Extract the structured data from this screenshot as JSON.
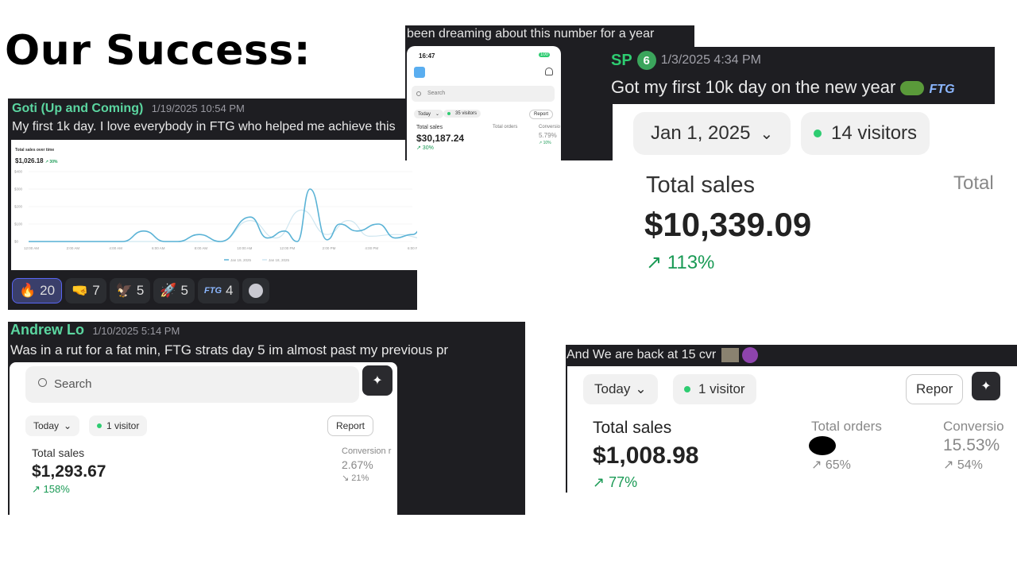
{
  "heading": "Our Success:",
  "post_goti": {
    "author": "Goti (Up and Coming)",
    "timestamp": "1/19/2025 10:54 PM",
    "message": "My first 1k day. I love everybody in FTG who helped me achieve this",
    "chart": {
      "title": "Total sales over time",
      "total": "$1,026.18",
      "change": "↗ 30%"
    },
    "reactions": [
      {
        "icon": "fire-emoji",
        "glyph": "🔥",
        "count": "20"
      },
      {
        "icon": "fist-emoji",
        "glyph": "🤜",
        "count": "7"
      },
      {
        "icon": "eagle-emoji",
        "glyph": "🦅",
        "count": "5"
      },
      {
        "icon": "rocket-emoji",
        "glyph": "🚀",
        "count": "5"
      },
      {
        "icon": "ftg-emoji",
        "glyph": "FTG",
        "count": "4"
      }
    ]
  },
  "chart_data": {
    "type": "line",
    "title": "Total sales over time",
    "x": [
      "12:00 AM",
      "2:00 AM",
      "4:00 AM",
      "6:00 AM",
      "8:00 AM",
      "10:00 AM",
      "12:00 PM",
      "2:00 PM",
      "4:00 PM",
      "6:00 PM"
    ],
    "y_ticks": [
      "$400",
      "$300",
      "$200",
      "$100",
      "$0"
    ],
    "ylim": [
      0,
      400
    ],
    "series": [
      {
        "name": "Jan 19, 2025",
        "color": "#5bb3d6",
        "points": [
          [
            0,
            0
          ],
          [
            1.4,
            0
          ],
          [
            2.2,
            0
          ],
          [
            2.7,
            60
          ],
          [
            3.2,
            0
          ],
          [
            3.5,
            0
          ],
          [
            4,
            40
          ],
          [
            4.5,
            0
          ],
          [
            5.2,
            140
          ],
          [
            5.6,
            20
          ],
          [
            6,
            60
          ],
          [
            6.3,
            0
          ],
          [
            6.6,
            300
          ],
          [
            7,
            10
          ],
          [
            7.3,
            100
          ],
          [
            7.7,
            60
          ],
          [
            8.2,
            100
          ],
          [
            8.6,
            20
          ],
          [
            9,
            40
          ],
          [
            9.3,
            100
          ],
          [
            9.5,
            80
          ]
        ]
      },
      {
        "name": "Jan 18, 2025",
        "color": "#cfe6f0",
        "points": [
          [
            0,
            0
          ],
          [
            4.5,
            0
          ],
          [
            5.2,
            120
          ],
          [
            5.8,
            20
          ],
          [
            6.4,
            180
          ],
          [
            7,
            40
          ],
          [
            7.5,
            120
          ],
          [
            8,
            30
          ],
          [
            8.6,
            40
          ],
          [
            9.5,
            10
          ]
        ]
      }
    ]
  },
  "screenshot_phone": {
    "caption": "been dreaming about this number for a year",
    "time": "16:47",
    "battery": "100",
    "search_placeholder": "Search",
    "today": "Today",
    "visitors": "35 visitors",
    "report": "Report",
    "total_sales_label": "Total sales",
    "total_sales": "$30,187.24",
    "change": "↗ 30%",
    "orders_label": "Total orders",
    "conversion_label": "Conversio",
    "conversion": "5.79%",
    "conversion_change": "↗ 10%"
  },
  "post_sp": {
    "author": "SP",
    "level": "6",
    "timestamp": "1/3/2025 4:34 PM",
    "message": "Got my first 10k day on the new year",
    "ftg": "FTG",
    "date_pill": "Jan 1, 2025",
    "visitors": "14 visitors",
    "total_sales_label": "Total sales",
    "total_label": "Total",
    "total_sales": "$10,339.09",
    "change": "↗ 113%"
  },
  "post_andrew": {
    "author": "Andrew Lo",
    "timestamp": "1/10/2025 5:14 PM",
    "message": "Was in a rut for a fat min, FTG strats day 5 im almost past my previous pr",
    "search_placeholder": "Search",
    "today": "Today",
    "visitors": "1 visitor",
    "report": "Report",
    "total_sales_label": "Total sales",
    "total_sales": "$1,293.67",
    "change": "↗ 158%",
    "conversion_label": "Conversion r",
    "conversion": "2.67%",
    "conversion_change": "↘ 21%"
  },
  "post_cvr": {
    "caption": "And We are back at 15 cvr",
    "today": "Today",
    "visitors": "1 visitor",
    "report": "Repor",
    "total_sales_label": "Total sales",
    "total_sales": "$1,008.98",
    "change": "↗ 77%",
    "orders_label": "Total orders",
    "orders_change": "↗ 65%",
    "conversion_label": "Conversio",
    "conversion": "15.53%",
    "conversion_change": "↗ 54%"
  }
}
